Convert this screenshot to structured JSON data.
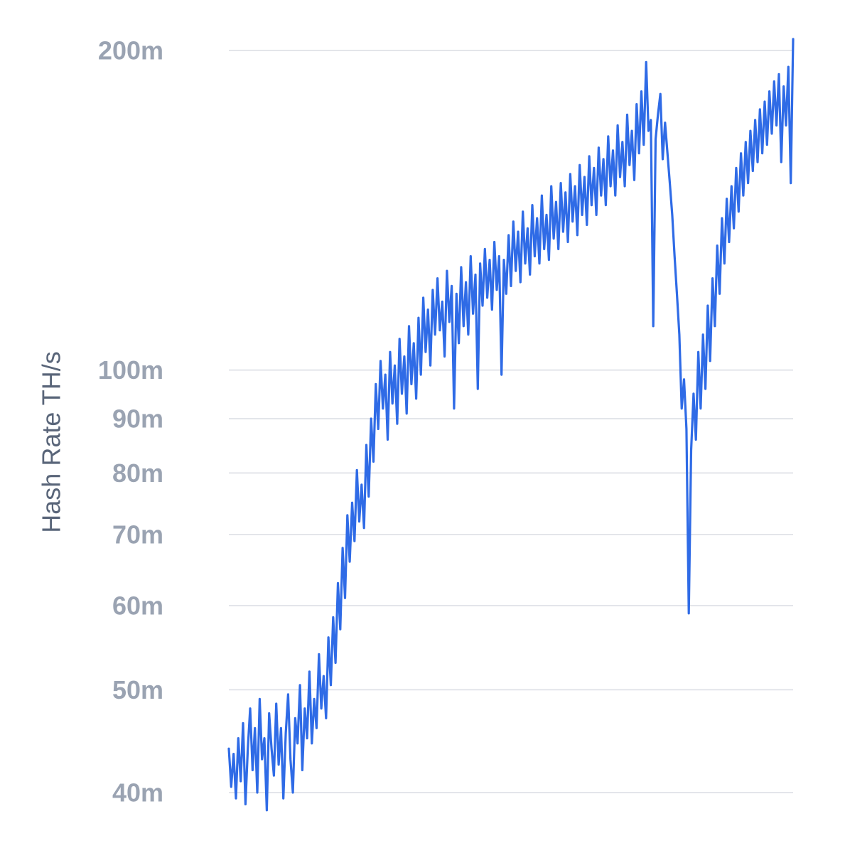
{
  "chart_data": {
    "type": "line",
    "title": "",
    "xlabel": "",
    "ylabel": "Hash Rate TH/s",
    "yscale": "log",
    "ylim": [
      38000000,
      210000000
    ],
    "y_ticks": [
      {
        "value": 40000000,
        "label": "40m"
      },
      {
        "value": 50000000,
        "label": "50m"
      },
      {
        "value": 60000000,
        "label": "60m"
      },
      {
        "value": 70000000,
        "label": "70m"
      },
      {
        "value": 80000000,
        "label": "80m"
      },
      {
        "value": 90000000,
        "label": "90m"
      },
      {
        "value": 100000000,
        "label": "100m"
      },
      {
        "value": 200000000,
        "label": "200m"
      }
    ],
    "grid": true,
    "legend": "none",
    "line_color": "#2f6be6",
    "series": [
      {
        "values": [
          44000000,
          40500000,
          43500000,
          39500000,
          45000000,
          41000000,
          46500000,
          39000000,
          44000000,
          48000000,
          42000000,
          46000000,
          40000000,
          49000000,
          43000000,
          45000000,
          38500000,
          47500000,
          44000000,
          41500000,
          48500000,
          42500000,
          46000000,
          39500000,
          45500000,
          49500000,
          43000000,
          40000000,
          47000000,
          44500000,
          50500000,
          42000000,
          48000000,
          45000000,
          52000000,
          44500000,
          49000000,
          46000000,
          54000000,
          48000000,
          51500000,
          47000000,
          56000000,
          50500000,
          58500000,
          53000000,
          63000000,
          57000000,
          68000000,
          61000000,
          73000000,
          66000000,
          75000000,
          69000000,
          80500000,
          72000000,
          78000000,
          71000000,
          85000000,
          76000000,
          90000000,
          82000000,
          97000000,
          88000000,
          102000000,
          92000000,
          99000000,
          86000000,
          104000000,
          93000000,
          101000000,
          89000000,
          107000000,
          95000000,
          103000000,
          91000000,
          110000000,
          97000000,
          106000000,
          94000000,
          112000000,
          99000000,
          117000000,
          104000000,
          114000000,
          101000000,
          119000000,
          108000000,
          122000000,
          109000000,
          116000000,
          103000000,
          124000000,
          111000000,
          120000000,
          92000000,
          118000000,
          106000000,
          125000000,
          110000000,
          121000000,
          108000000,
          128000000,
          113000000,
          123000000,
          96000000,
          126000000,
          115000000,
          130000000,
          117000000,
          127000000,
          114000000,
          132000000,
          119000000,
          128000000,
          99000000,
          127000000,
          118000000,
          134000000,
          120000000,
          138000000,
          124000000,
          135000000,
          121000000,
          141000000,
          126000000,
          136000000,
          123000000,
          143000000,
          128000000,
          139000000,
          126000000,
          146000000,
          130000000,
          140000000,
          127000000,
          149000000,
          133000000,
          144000000,
          130000000,
          150000000,
          135000000,
          147000000,
          132000000,
          153000000,
          138000000,
          149000000,
          134000000,
          156000000,
          140000000,
          152000000,
          137000000,
          159000000,
          143000000,
          155000000,
          140000000,
          162000000,
          146000000,
          158000000,
          143000000,
          166000000,
          149000000,
          161000000,
          146000000,
          170000000,
          152000000,
          164000000,
          149000000,
          174000000,
          156000000,
          168000000,
          151000000,
          178000000,
          160000000,
          183000000,
          163000000,
          195000000,
          168000000,
          172000000,
          110000000,
          165000000,
          174000000,
          182000000,
          158000000,
          171000000,
          160000000,
          150000000,
          140000000,
          128000000,
          118000000,
          108000000,
          92000000,
          98000000,
          88000000,
          59000000,
          84000000,
          95000000,
          86000000,
          104000000,
          92000000,
          108000000,
          96000000,
          115000000,
          102000000,
          122000000,
          110000000,
          131000000,
          118000000,
          139000000,
          126000000,
          145000000,
          132000000,
          149000000,
          136000000,
          155000000,
          141000000,
          160000000,
          146000000,
          164000000,
          150000000,
          168000000,
          154000000,
          172000000,
          157000000,
          176000000,
          160000000,
          179000000,
          163000000,
          183000000,
          167000000,
          187000000,
          170000000,
          190000000,
          157000000,
          185000000,
          170000000,
          193000000,
          150000000,
          205000000
        ]
      }
    ]
  }
}
